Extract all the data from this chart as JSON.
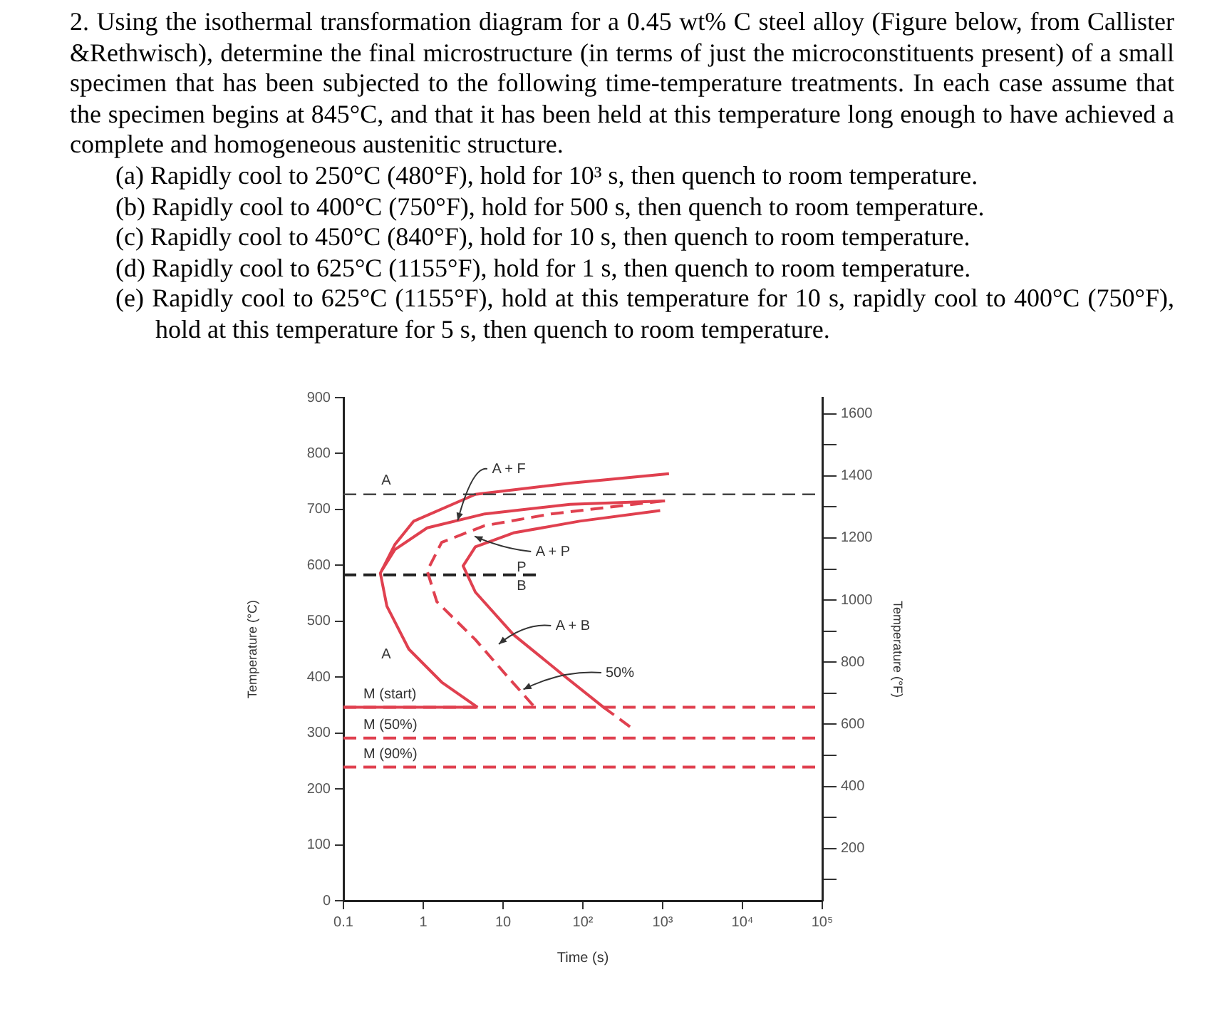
{
  "chart_data": {
    "type": "line",
    "title": "2. Using the isothermal transformation diagram for a 0.45 wt% C steel alloy (Figure below, from Callister &Rethwisch), determine the final microstructure (in terms of just the microconstituents present) of a small specimen that has been subjected to the following time-temperature treatments. In each case assume that the specimen begins at 845°C, and that it has been held at this temperature long enough to have achieved a complete and homogeneous austenitic structure.",
    "annotations": [
      "(a) Rapidly cool to 250°C (480°F), hold for 10³ s, then quench to room temperature.",
      "(b) Rapidly cool to 400°C (750°F), hold for 500 s, then quench to room temperature.",
      "(c) Rapidly cool to 450°C (840°F), hold for 10 s, then quench to room temperature.",
      "(d) Rapidly cool to 625°C (1155°F), hold for 1 s, then quench to room temperature.",
      "(e) Rapidly cool to 625°C (1155°F), hold at this temperature for 10 s, rapidly cool to 400°C (750°F), hold at this temperature for 5 s, then quench to room temperature.",
      "A",
      {
        "text": "A + F",
        "x": 2.7,
        "y": 680
      },
      {
        "text": "A + P",
        "x": 4.4,
        "y": 652
      },
      "P",
      "B",
      "A + B",
      "A",
      {
        "text": "50%",
        "x": 18,
        "y": 378
      }
    ],
    "xlabel": "Time (s)",
    "ylabel": "Temperature (°C)",
    "y2label": "Temperature (°F)",
    "log": "x",
    "grid": false,
    "legend": false,
    "marker": "none",
    "xlim": [
      0.1,
      100000
    ],
    "xticks": [
      0.1,
      1,
      10,
      {
        "value": 100,
        "label": "10²"
      },
      {
        "value": 1000,
        "label": "10³"
      },
      {
        "value": 10000,
        "label": "10⁴"
      },
      {
        "value": 100000,
        "label": "10⁵"
      }
    ],
    "ylim": [
      0,
      900
    ],
    "yticks": [
      0,
      100,
      200,
      300,
      400,
      500,
      600,
      700,
      800,
      900
    ],
    "y2lim": [
      32,
      1652
    ],
    "y2ticks": [
      {
        "value": 100,
        "label": null
      },
      200,
      {
        "value": 300,
        "label": null
      },
      400,
      {
        "value": 500,
        "label": null
      },
      600,
      {
        "value": 700,
        "label": null
      },
      800,
      {
        "value": 900,
        "label": null
      },
      1000,
      {
        "value": 1100,
        "label": null
      },
      1200,
      {
        "value": 1300,
        "label": null
      },
      1400,
      {
        "value": 1500,
        "label": null
      },
      1600
    ],
    "series": [
      {
        "color": "#e0404f",
        "line_style": "solid",
        "x": [
          1200,
          70,
          4.5,
          0.76,
          0.44,
          0.29,
          0.35,
          0.66,
          1.7,
          4.8
        ],
        "values": [
          764,
          747,
          727,
          679,
          637,
          586,
          527,
          450,
          391,
          346
        ]
      },
      {
        "color": "#e0404f",
        "line_style": "solid",
        "x": [
          1070,
          69,
          5.9,
          1.12,
          0.44,
          0.3
        ],
        "values": [
          715,
          709,
          692,
          667,
          628,
          590
        ]
      },
      {
        "color": "#e0404f",
        "line_style": "dashed",
        "x": [
          1000,
          40,
          5.9,
          1.7,
          1.12,
          1.48,
          4.5,
          11.7,
          25
        ],
        "values": [
          715,
          692,
          671,
          641,
          590,
          535,
          467,
          399,
          346
        ]
      },
      {
        "color": "#e0404f",
        "line_style": "solid",
        "x": [
          930,
          91,
          13.5,
          4.5,
          3.16,
          4.5,
          13.5,
          52,
          182
        ],
        "values": [
          698,
          679,
          658,
          633,
          599,
          552,
          476,
          408,
          346
        ]
      },
      {
        "color": "#e0404f",
        "line_style": "dashed",
        "x": [
          182,
          400
        ],
        "values": [
          346,
          310
        ]
      },
      {
        "color": "#222222",
        "line_style": "dashed",
        "x": [
          0.1,
          28
        ],
        "values": [
          583,
          583
        ]
      },
      {
        "color": "#e0404f",
        "line_style": "solid",
        "x": [
          0.1,
          4.8
        ],
        "values": [
          346,
          346
        ]
      }
    ],
    "ref_lines": [
      {
        "axis": "y",
        "value": 727,
        "label": null,
        "color": "#444444",
        "line_style": "dashed"
      },
      {
        "axis": "y",
        "value": 346,
        "label": "M (start)",
        "color": "#e0404f",
        "line_style": "dashed"
      },
      {
        "axis": "y",
        "value": 291,
        "label": "M (50%)",
        "color": "#e0404f",
        "line_style": "dashed"
      },
      {
        "axis": "y",
        "value": 239,
        "label": "M (90%)",
        "color": "#e0404f",
        "line_style": "dashed"
      }
    ]
  }
}
